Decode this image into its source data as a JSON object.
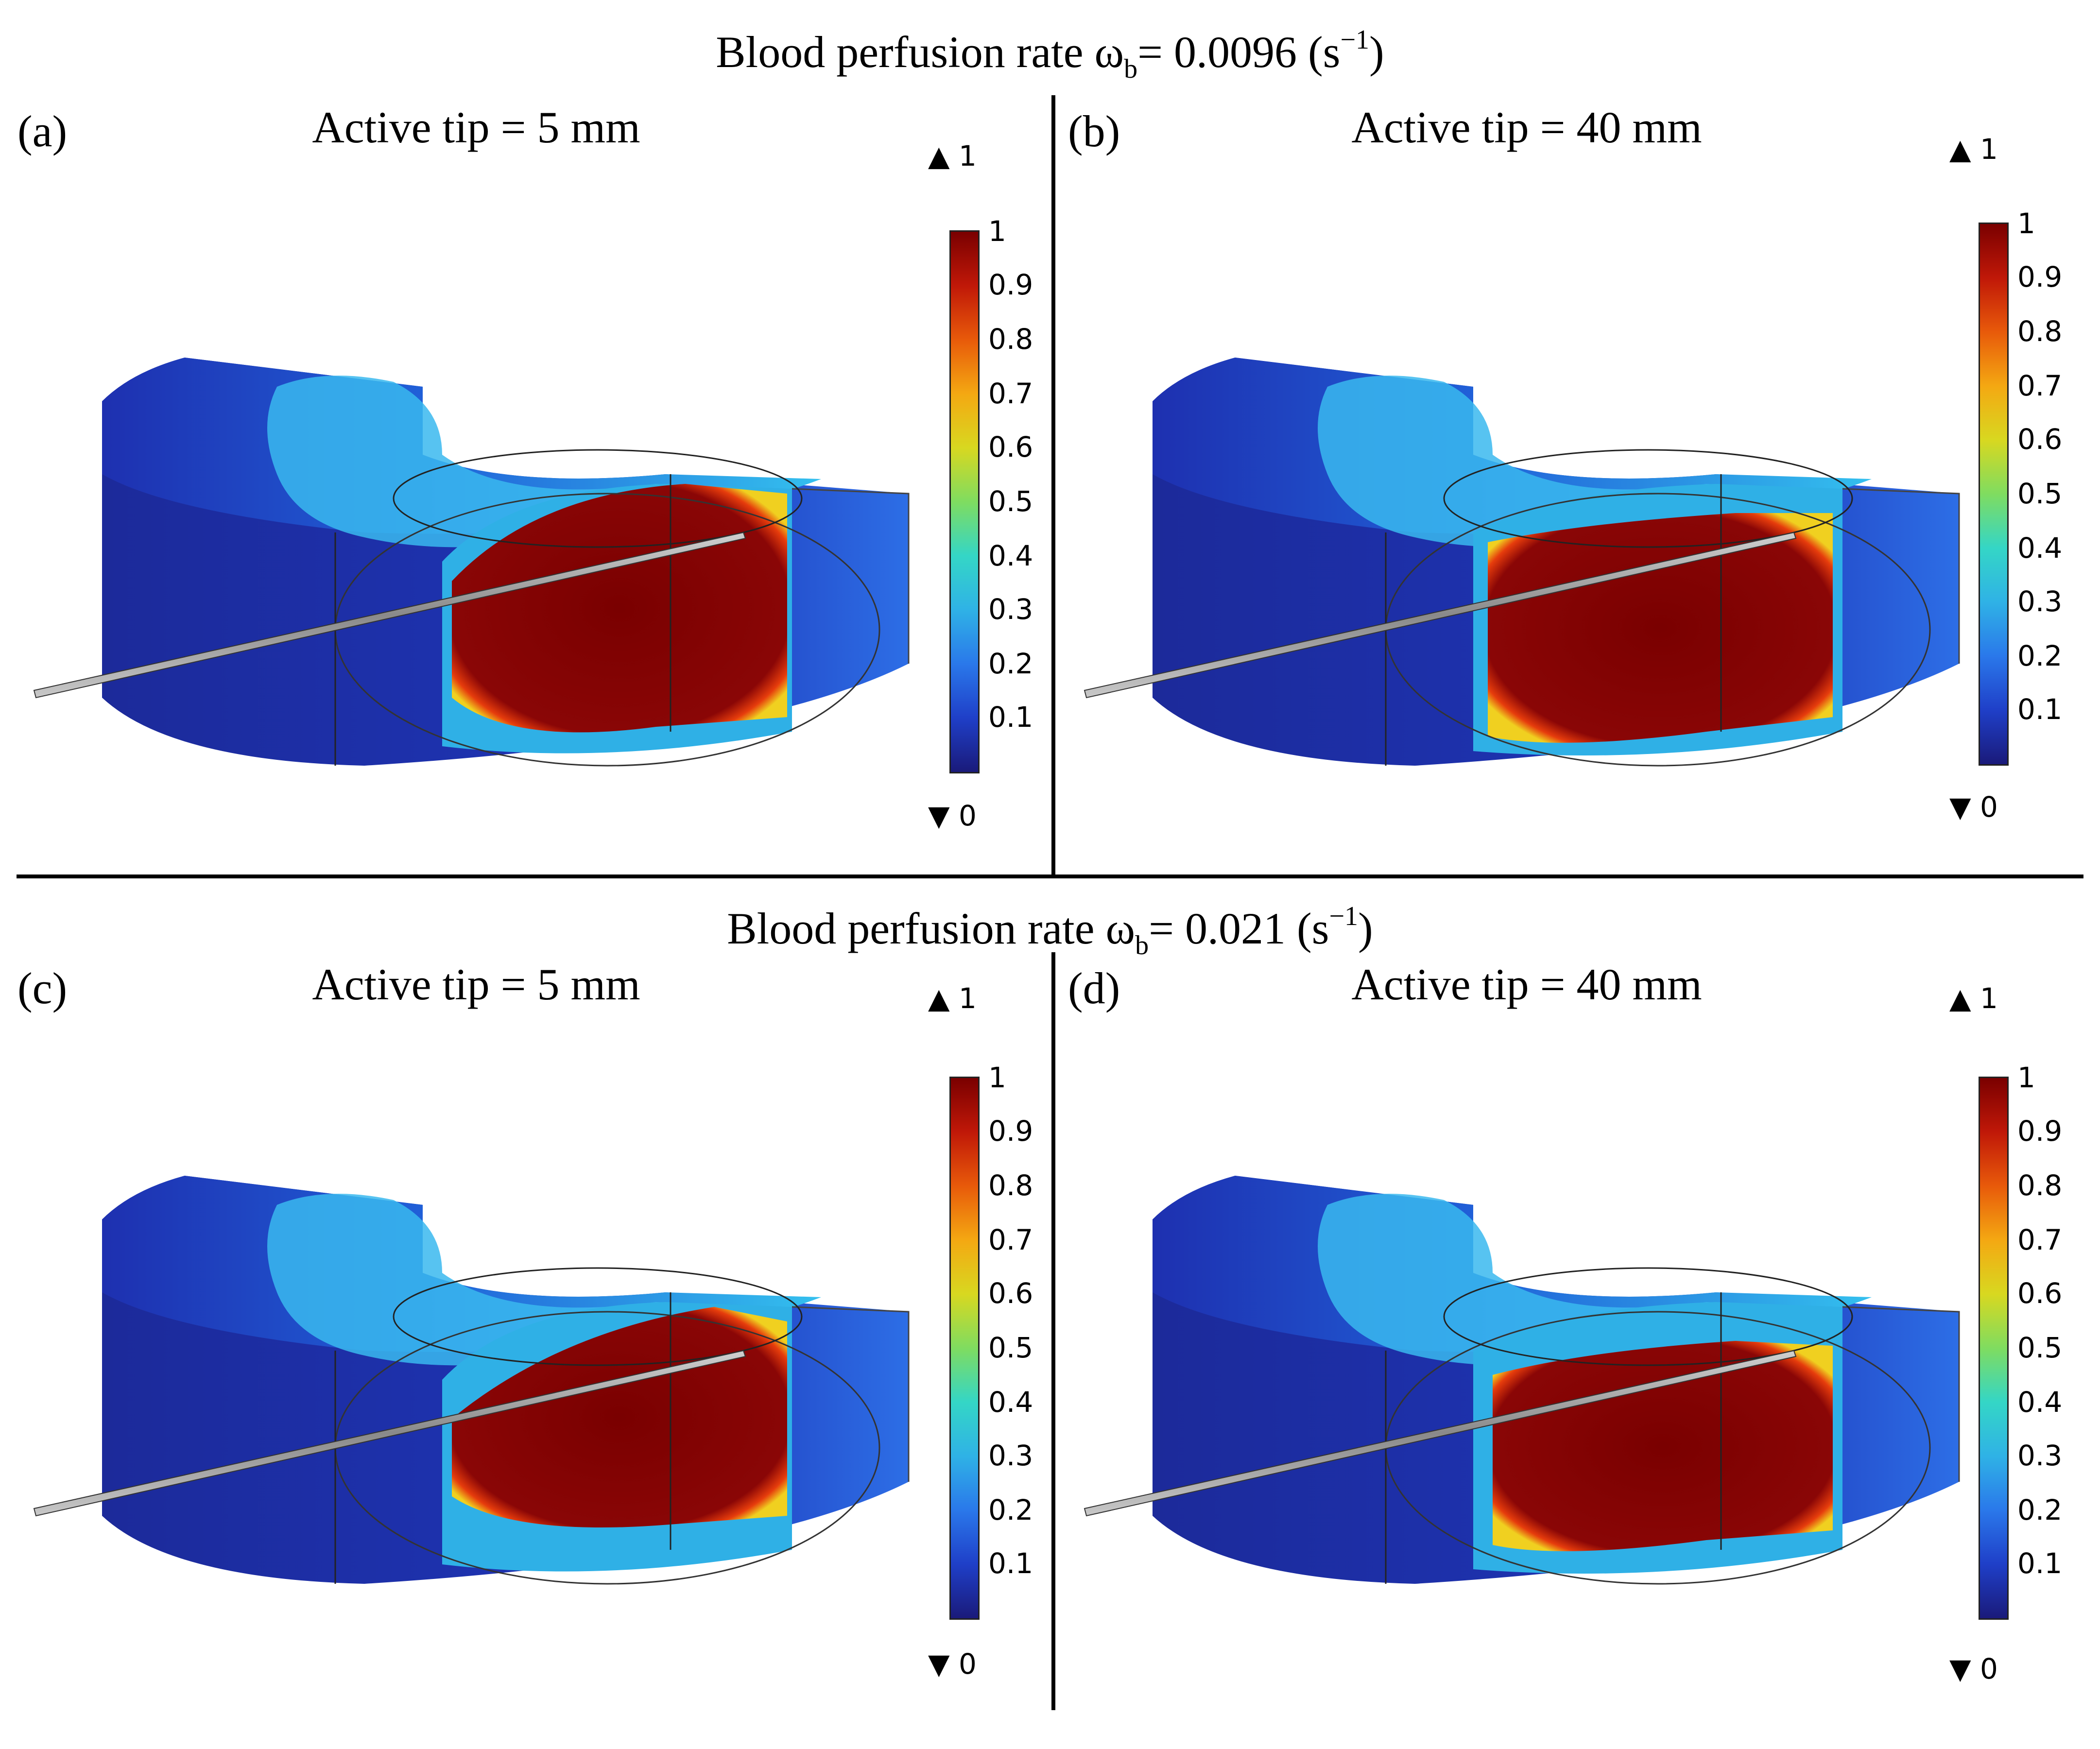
{
  "sections": [
    {
      "title_prefix": "Blood perfusion rate ω",
      "title_sub": "b",
      "title_mid": "= 0.0096 (s",
      "title_sup": "−1",
      "title_suffix": ")"
    },
    {
      "title_prefix": "Blood perfusion rate ω",
      "title_sub": "b",
      "title_mid": "= 0.021 (s",
      "title_sup": "−1",
      "title_suffix": ")"
    }
  ],
  "panels": [
    {
      "label": "(a)",
      "title": "Active tip = 5 mm"
    },
    {
      "label": "(b)",
      "title": "Active tip = 40 mm"
    },
    {
      "label": "(c)",
      "title": "Active tip = 5 mm"
    },
    {
      "label": "(d)",
      "title": "Active tip = 40 mm"
    }
  ],
  "colorbar": {
    "ticks": [
      "1",
      "0.9",
      "0.8",
      "0.7",
      "0.6",
      "0.5",
      "0.4",
      "0.3",
      "0.2",
      "0.1"
    ],
    "max_arrow_label": "▲ 1",
    "min_arrow_label": "▼ 0",
    "max_value": 1,
    "min_value": 0,
    "colors": {
      "low": "#1a1a7a",
      "mid": "#34d6c6",
      "high": "#7a0000"
    }
  },
  "icons": {
    "max": "triangle-up-icon",
    "min": "triangle-down-icon"
  }
}
